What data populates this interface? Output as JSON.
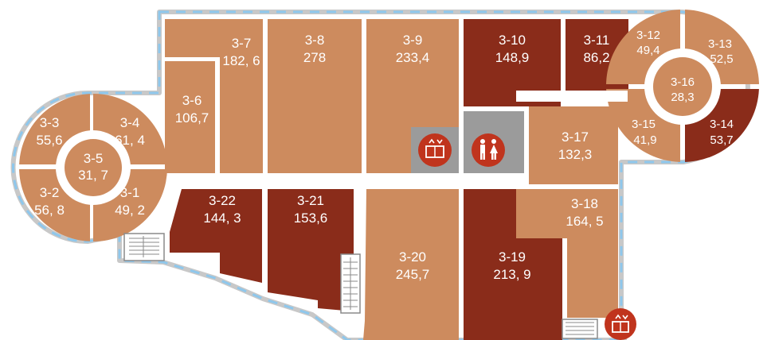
{
  "colors": {
    "room_light": "#CD8B5E",
    "room_dark": "#8A2C1A",
    "corridor": "#FFFFFF",
    "outline": "#C8C8C8",
    "outline_dash": "#8EC7EC",
    "service": "#9B9B9B",
    "lift_badge": "#C0341D"
  },
  "rooms": [
    {
      "id": "3-1",
      "area": "49, 2",
      "tone": "light"
    },
    {
      "id": "3-2",
      "area": "56, 8",
      "tone": "light"
    },
    {
      "id": "3-3",
      "area": "55,6",
      "tone": "light"
    },
    {
      "id": "3-4",
      "area": "61, 4",
      "tone": "light"
    },
    {
      "id": "3-5",
      "area": "31, 7",
      "tone": "light"
    },
    {
      "id": "3-6",
      "area": "106,7",
      "tone": "light"
    },
    {
      "id": "3-7",
      "area": "182, 6",
      "tone": "light"
    },
    {
      "id": "3-8",
      "area": "278",
      "tone": "light"
    },
    {
      "id": "3-9",
      "area": "233,4",
      "tone": "light"
    },
    {
      "id": "3-10",
      "area": "148,9",
      "tone": "dark"
    },
    {
      "id": "3-11",
      "area": "86,2",
      "tone": "dark"
    },
    {
      "id": "3-12",
      "area": "49,4",
      "tone": "light"
    },
    {
      "id": "3-13",
      "area": "52,5",
      "tone": "light"
    },
    {
      "id": "3-14",
      "area": "53,7",
      "tone": "dark"
    },
    {
      "id": "3-15",
      "area": "41,9",
      "tone": "light"
    },
    {
      "id": "3-16",
      "area": "28,3",
      "tone": "light"
    },
    {
      "id": "3-17",
      "area": "132,3",
      "tone": "light"
    },
    {
      "id": "3-18",
      "area": "164, 5",
      "tone": "light"
    },
    {
      "id": "3-19",
      "area": "213, 9",
      "tone": "dark"
    },
    {
      "id": "3-20",
      "area": "245,7",
      "tone": "light"
    },
    {
      "id": "3-21",
      "area": "153,6",
      "tone": "dark"
    },
    {
      "id": "3-22",
      "area": "144, 3",
      "tone": "dark"
    }
  ],
  "icons": [
    {
      "name": "elevator-icon"
    },
    {
      "name": "restroom-icon"
    },
    {
      "name": "elevator-icon"
    },
    {
      "name": "stairs-icon"
    }
  ]
}
